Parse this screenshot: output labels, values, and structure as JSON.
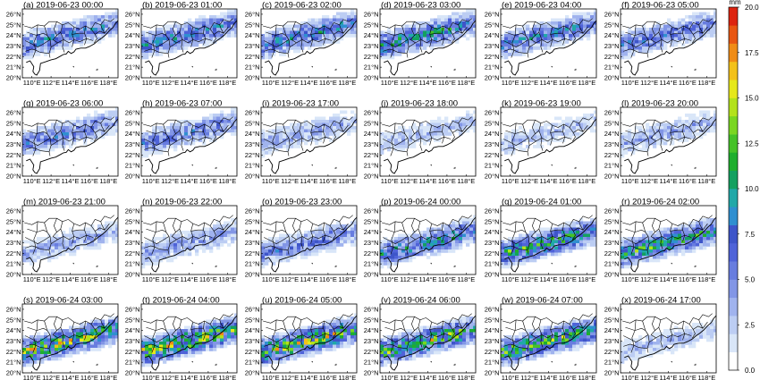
{
  "panels": [
    {
      "title": "(a) 2019-06-23 00:00",
      "intensity": 0.55
    },
    {
      "title": "(b) 2019-06-23 01:00",
      "intensity": 0.6
    },
    {
      "title": "(c) 2019-06-23 02:00",
      "intensity": 0.6
    },
    {
      "title": "(d) 2019-06-23 03:00",
      "intensity": 0.7
    },
    {
      "title": "(e) 2019-06-23 04:00",
      "intensity": 0.55
    },
    {
      "title": "(f) 2019-06-23 05:00",
      "intensity": 0.5
    },
    {
      "title": "(g) 2019-06-23 06:00",
      "intensity": 0.45
    },
    {
      "title": "(h) 2019-06-23 07:00",
      "intensity": 0.45
    },
    {
      "title": "(i) 2019-06-23 17:00",
      "intensity": 0.3
    },
    {
      "title": "(j) 2019-06-23 18:00",
      "intensity": 0.25
    },
    {
      "title": "(k) 2019-06-23 19:00",
      "intensity": 0.25
    },
    {
      "title": "(l) 2019-06-23 20:00",
      "intensity": 0.3
    },
    {
      "title": "(m) 2019-06-23 21:00",
      "intensity": 0.3
    },
    {
      "title": "(n) 2019-06-23 22:00",
      "intensity": 0.35
    },
    {
      "title": "(o) 2019-06-23 23:00",
      "intensity": 0.45
    },
    {
      "title": "(p) 2019-06-24 00:00",
      "intensity": 0.65
    },
    {
      "title": "(q) 2019-06-24 01:00",
      "intensity": 0.8
    },
    {
      "title": "(r) 2019-06-24 02:00",
      "intensity": 0.8
    },
    {
      "title": "(s) 2019-06-24 03:00",
      "intensity": 0.95
    },
    {
      "title": "(t) 2019-06-24 04:00",
      "intensity": 1.0
    },
    {
      "title": "(u) 2019-06-24 05:00",
      "intensity": 0.95
    },
    {
      "title": "(v) 2019-06-24 06:00",
      "intensity": 0.9
    },
    {
      "title": "(w) 2019-06-24 07:00",
      "intensity": 0.85
    },
    {
      "title": "(x) 2019-06-24 17:00",
      "intensity": 0.25
    }
  ],
  "axes": {
    "lat_labels": [
      "26°N",
      "25°N",
      "24°N",
      "23°N",
      "22°N",
      "21°N",
      "20°N"
    ],
    "lon_labels": [
      "110°E",
      "112°E",
      "114°E",
      "116°E",
      "118°E"
    ]
  },
  "colorbar": {
    "unit": "mm",
    "tick_labels": [
      "20.0",
      "17.5",
      "15.0",
      "12.5",
      "10.0",
      "7.5",
      "5.0",
      "2.5",
      "0.0"
    ],
    "colors": [
      "#ffffff",
      "#d9e6f8",
      "#bccdf3",
      "#a0b3ee",
      "#8296e6",
      "#687ddf",
      "#4f63d8",
      "#3e55c9",
      "#2f8fd0",
      "#21a8a8",
      "#14a060",
      "#1fae2e",
      "#45c228",
      "#7ad622",
      "#b3e21c",
      "#e6e81b",
      "#f3c11a",
      "#f08c16",
      "#e85612",
      "#dd2410"
    ]
  }
}
